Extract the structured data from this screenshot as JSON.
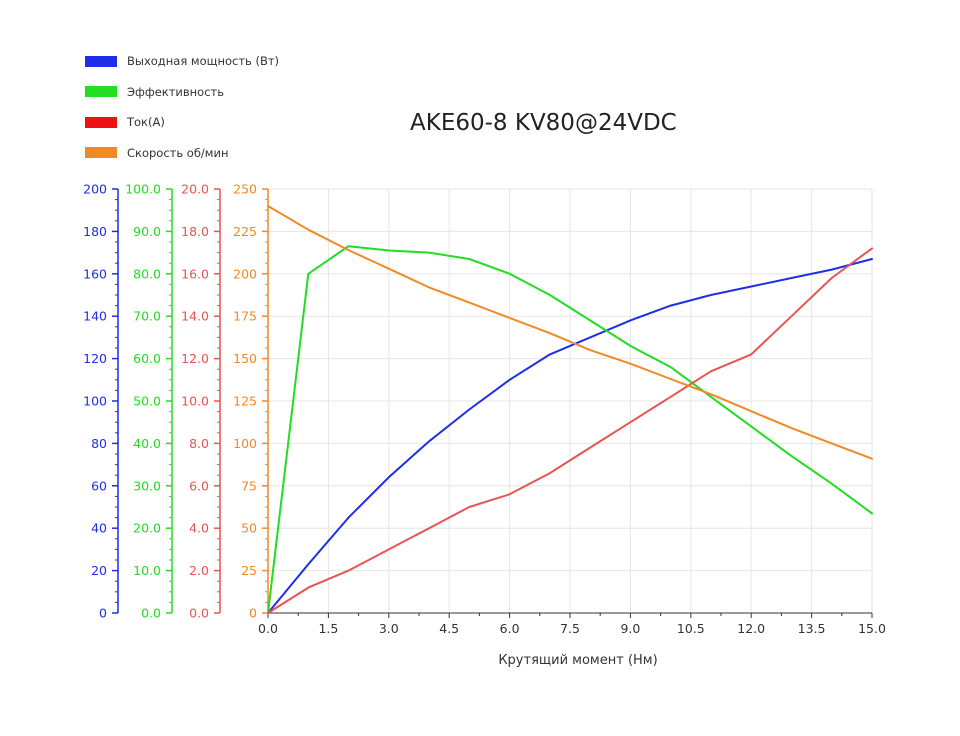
{
  "chart_data": {
    "type": "line",
    "title": "AKE60-8 KV80@24VDC",
    "xlabel": "Крутящий момент (Нм)",
    "xlim": [
      0,
      15
    ],
    "x_ticks": [
      "0.0",
      "1.5",
      "3.0",
      "4.5",
      "6.0",
      "7.5",
      "9.0",
      "10.5",
      "12.0",
      "13.5",
      "15.0"
    ],
    "legend_position": "top-left",
    "grid": true,
    "axes": [
      {
        "id": "power",
        "color": "#1f2ee8",
        "ylim": [
          0,
          200
        ],
        "ticks": [
          "0",
          "20",
          "40",
          "60",
          "80",
          "100",
          "120",
          "140",
          "160",
          "180",
          "200"
        ]
      },
      {
        "id": "efficiency",
        "color": "#22dd22",
        "ylim": [
          0,
          100
        ],
        "ticks": [
          "0.0",
          "10.0",
          "20.0",
          "30.0",
          "40.0",
          "50.0",
          "60.0",
          "70.0",
          "80.0",
          "90.0",
          "100.0"
        ]
      },
      {
        "id": "current",
        "color": "#e85454",
        "ylim": [
          0,
          20
        ],
        "ticks": [
          "0.0",
          "2.0",
          "4.0",
          "6.0",
          "8.0",
          "10.0",
          "12.0",
          "14.0",
          "16.0",
          "18.0",
          "20.0"
        ]
      },
      {
        "id": "speed",
        "color": "#f08a24",
        "ylim": [
          0,
          250
        ],
        "ticks": [
          "0",
          "25",
          "50",
          "75",
          "100",
          "125",
          "150",
          "175",
          "200",
          "225",
          "250"
        ]
      }
    ],
    "series": [
      {
        "name": "Выходная мощность (Вт)",
        "axis": "power",
        "color": "#1f2ee8",
        "x": [
          0,
          1,
          2,
          3,
          4,
          5,
          6,
          7,
          8,
          9,
          10,
          11,
          12,
          13,
          14,
          15
        ],
        "y": [
          0,
          23,
          45,
          64,
          81,
          96,
          110,
          122,
          130,
          138,
          145,
          150,
          154,
          158,
          162,
          167
        ]
      },
      {
        "name": "Эффективность",
        "axis": "efficiency",
        "color": "#22dd22",
        "x": [
          0,
          1,
          2,
          3,
          4,
          5,
          6,
          7,
          8,
          9,
          10,
          11,
          12,
          13,
          14,
          15
        ],
        "y": [
          0,
          80,
          86.5,
          85.5,
          85,
          83.5,
          80,
          75,
          69,
          63,
          58,
          51,
          44,
          37,
          30.5,
          23.5
        ]
      },
      {
        "name": "Ток(А)",
        "axis": "current",
        "color": "#e85454",
        "x": [
          0,
          1,
          2,
          3,
          4,
          5,
          6,
          7,
          8,
          9,
          10,
          11,
          12,
          13,
          14,
          15
        ],
        "y": [
          0,
          1.2,
          2.0,
          3.0,
          4.0,
          5.0,
          5.6,
          6.6,
          7.8,
          9.0,
          10.2,
          11.4,
          12.2,
          14.0,
          15.8,
          17.2
        ]
      },
      {
        "name": "Скорость об/мин",
        "axis": "speed",
        "color": "#f08a24",
        "x": [
          0,
          1,
          2,
          3,
          4,
          5,
          6,
          7,
          8,
          9,
          10,
          11,
          12,
          13,
          14,
          15
        ],
        "y": [
          240,
          226,
          214,
          203,
          192,
          183,
          174,
          165,
          155,
          147,
          138,
          129,
          119,
          109,
          100,
          91
        ]
      }
    ]
  }
}
